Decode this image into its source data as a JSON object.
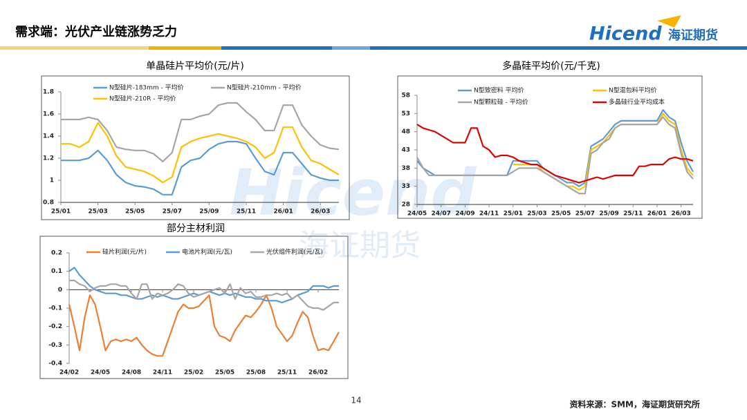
{
  "header": {
    "title": "需求端：光伏产业链涨势乏力",
    "logo": "Hicend",
    "logo_cn": "海证期货"
  },
  "watermark": {
    "en": "Hicend",
    "cn": "海证期货"
  },
  "footer": {
    "page": "14",
    "source": "资料来源：SMM，海证期货研究所"
  },
  "chart_data": [
    {
      "type": "line",
      "title": "单晶硅片平均价(元/片)",
      "categories": [
        "25/01",
        null,
        null,
        null,
        "25/03",
        null,
        null,
        null,
        "25/05",
        null,
        null,
        null,
        "25/07",
        null,
        null,
        null,
        "25/09",
        null,
        null,
        null,
        "25/11",
        null,
        null,
        null,
        "26/01",
        null,
        null,
        null,
        "26/03",
        null,
        null
      ],
      "series": [
        {
          "name": "N型硅片-183mm - 平均价",
          "color": "#5b9bd5",
          "values": [
            1.18,
            1.18,
            1.18,
            1.2,
            1.27,
            1.18,
            1.05,
            0.98,
            0.95,
            0.94,
            0.92,
            0.87,
            0.87,
            1.12,
            1.18,
            1.2,
            1.28,
            1.33,
            1.35,
            1.35,
            1.33,
            1.2,
            1.08,
            1.05,
            1.25,
            1.25,
            1.15,
            1.05,
            1.02,
            1.0,
            1.0
          ]
        },
        {
          "name": "N型硅片-210mm - 平均价",
          "color": "#a5a5a5",
          "values": [
            1.55,
            1.55,
            1.55,
            1.57,
            1.55,
            1.45,
            1.3,
            1.28,
            1.27,
            1.27,
            1.24,
            1.17,
            1.25,
            1.55,
            1.55,
            1.58,
            1.6,
            1.68,
            1.7,
            1.7,
            1.62,
            1.55,
            1.45,
            1.45,
            1.68,
            1.68,
            1.5,
            1.4,
            1.32,
            1.29,
            1.28
          ]
        },
        {
          "name": "N型硅片-210R - 平均价",
          "color": "#ffc000",
          "values": [
            1.33,
            1.33,
            1.3,
            1.35,
            1.52,
            1.4,
            1.22,
            1.12,
            1.1,
            1.08,
            1.04,
            0.98,
            1.03,
            1.3,
            1.35,
            1.38,
            1.4,
            1.42,
            1.4,
            1.38,
            1.35,
            1.3,
            1.2,
            1.25,
            1.48,
            1.48,
            1.3,
            1.18,
            1.15,
            1.1,
            1.05
          ]
        }
      ],
      "ylim": [
        0.8,
        1.8
      ],
      "yticks": [
        0.8,
        1,
        1.2,
        1.4,
        1.6,
        1.8
      ]
    },
    {
      "type": "line",
      "title": "多晶硅平均价(元/千克)",
      "categories": [
        "24/05",
        null,
        null,
        null,
        "24/07",
        null,
        null,
        null,
        "24/09",
        null,
        null,
        null,
        "24/11",
        null,
        null,
        null,
        "25/01",
        null,
        null,
        null,
        "25/03",
        null,
        null,
        null,
        "25/05",
        null,
        null,
        null,
        "25/07",
        null,
        null,
        null,
        "25/09",
        null,
        null,
        null,
        "25/11",
        null,
        null,
        null,
        "26/01",
        null,
        null,
        null,
        "26/03",
        null,
        null
      ],
      "series": [
        {
          "name": "N型致密料 平均价",
          "color": "#5b9bd5",
          "values": [
            40,
            38,
            37,
            36,
            36,
            36,
            36,
            36,
            36,
            36,
            36,
            36,
            36,
            36,
            36,
            36,
            40,
            40,
            40,
            40,
            40,
            38,
            37,
            36,
            35,
            34,
            34,
            33,
            34,
            44,
            45,
            46,
            48,
            50,
            51,
            51,
            51,
            51,
            51,
            51,
            51,
            54,
            52,
            51,
            45,
            40,
            37
          ]
        },
        {
          "name": "N型混包料平均价",
          "color": "#ffc000",
          "values": [
            null,
            null,
            null,
            null,
            null,
            null,
            null,
            null,
            null,
            null,
            null,
            null,
            null,
            null,
            null,
            null,
            39,
            39,
            39,
            39,
            39,
            37,
            36,
            35,
            34,
            33,
            33,
            32,
            33,
            43,
            44,
            45,
            47,
            49,
            50,
            50,
            50,
            50,
            50,
            50,
            50,
            53,
            51,
            50,
            43,
            38,
            36
          ]
        },
        {
          "name": "N型颗粒硅 - 平均价",
          "color": "#a5a5a5",
          "values": [
            41,
            38,
            36,
            36,
            36,
            36,
            36,
            36,
            36,
            36,
            36,
            36,
            36,
            36,
            36,
            36,
            37,
            38,
            38,
            38,
            38,
            37,
            36,
            35,
            34,
            33,
            32,
            31,
            31,
            42,
            43,
            45,
            46,
            49,
            50,
            50,
            50,
            50,
            50,
            50,
            50,
            52,
            50,
            49,
            42,
            37,
            35
          ]
        },
        {
          "name": "多晶硅行业平均成本",
          "color": "#e00000",
          "values": [
            50,
            49,
            48.5,
            48,
            47,
            46,
            45,
            45,
            45,
            49,
            49,
            44,
            43,
            41,
            41.5,
            41.5,
            41,
            40,
            39.5,
            39,
            39,
            38,
            37,
            36,
            35.5,
            35,
            34.5,
            34,
            34.5,
            35,
            35.5,
            35,
            35.5,
            36,
            36,
            36,
            36,
            38.5,
            38.5,
            39,
            39,
            39,
            40.5,
            41,
            40.5,
            40.5,
            40
          ]
        }
      ],
      "ylim": [
        28,
        58
      ],
      "yticks": [
        28,
        33,
        38,
        43,
        48,
        53,
        58
      ]
    },
    {
      "type": "line",
      "title": "部分主材利润",
      "categories": [
        "24/02",
        null,
        null,
        null,
        null,
        null,
        "24/05",
        null,
        null,
        null,
        null,
        null,
        "24/08",
        null,
        null,
        null,
        null,
        null,
        "24/11",
        null,
        null,
        null,
        null,
        null,
        "25/02",
        null,
        null,
        null,
        null,
        null,
        "25/05",
        null,
        null,
        null,
        null,
        null,
        "25/08",
        null,
        null,
        null,
        null,
        null,
        "25/11",
        null,
        null,
        null,
        null,
        null,
        "26/02",
        null,
        null,
        null,
        null
      ],
      "series": [
        {
          "name": "硅片利润(元/片)",
          "color": "#ed7d31",
          "values": [
            -0.08,
            -0.2,
            -0.33,
            -0.15,
            -0.03,
            -0.08,
            -0.2,
            -0.33,
            -0.28,
            -0.27,
            -0.28,
            -0.27,
            -0.28,
            -0.26,
            -0.3,
            -0.33,
            -0.35,
            -0.36,
            -0.36,
            -0.28,
            -0.2,
            -0.12,
            -0.08,
            -0.1,
            -0.1,
            -0.09,
            -0.06,
            -0.03,
            -0.2,
            -0.25,
            -0.26,
            -0.28,
            -0.22,
            -0.18,
            -0.14,
            -0.15,
            -0.12,
            -0.08,
            -0.03,
            -0.1,
            -0.2,
            -0.24,
            -0.28,
            -0.25,
            -0.18,
            -0.12,
            -0.15,
            -0.25,
            -0.33,
            -0.32,
            -0.33,
            -0.28,
            -0.23
          ]
        },
        {
          "name": "电池片利润(元/瓦)",
          "color": "#5b9bd5",
          "values": [
            0.1,
            0.12,
            0.08,
            0.05,
            0.02,
            0.0,
            -0.01,
            -0.02,
            -0.02,
            -0.02,
            -0.03,
            -0.03,
            -0.04,
            -0.05,
            -0.05,
            -0.04,
            -0.03,
            -0.04,
            -0.03,
            -0.04,
            -0.05,
            -0.05,
            -0.04,
            -0.03,
            -0.02,
            -0.03,
            -0.02,
            -0.01,
            -0.02,
            -0.03,
            -0.02,
            -0.03,
            -0.02,
            -0.03,
            -0.04,
            -0.04,
            -0.05,
            -0.05,
            -0.06,
            -0.06,
            -0.06,
            -0.07,
            -0.06,
            -0.05,
            -0.03,
            -0.02,
            -0.01,
            0.02,
            0.02,
            0.02,
            0.01,
            0.02,
            0.02
          ]
        },
        {
          "name": "光伏组件利润(元/瓦)",
          "color": "#a5a5a5",
          "values": [
            0.05,
            0.05,
            0.03,
            0.02,
            -0.01,
            0.01,
            0.02,
            0.02,
            0.03,
            0.03,
            0.02,
            0.02,
            -0.02,
            -0.05,
            0.03,
            0.03,
            -0.05,
            -0.02,
            -0.03,
            -0.02,
            0.0,
            0.03,
            0.02,
            -0.02,
            -0.04,
            -0.03,
            -0.02,
            -0.01,
            0.0,
            0.01,
            -0.02,
            0.03,
            -0.05,
            0.01,
            -0.02,
            -0.01,
            -0.04,
            -0.04,
            -0.03,
            -0.03,
            -0.02,
            -0.03,
            -0.02,
            -0.05,
            -0.03,
            -0.06,
            -0.09,
            -0.1,
            -0.1,
            -0.11,
            -0.09,
            -0.07,
            -0.07
          ]
        }
      ],
      "ylim": [
        -0.4,
        0.2
      ],
      "yticks": [
        -0.4,
        -0.3,
        -0.2,
        -0.1,
        0,
        0.1,
        0.2
      ]
    }
  ]
}
